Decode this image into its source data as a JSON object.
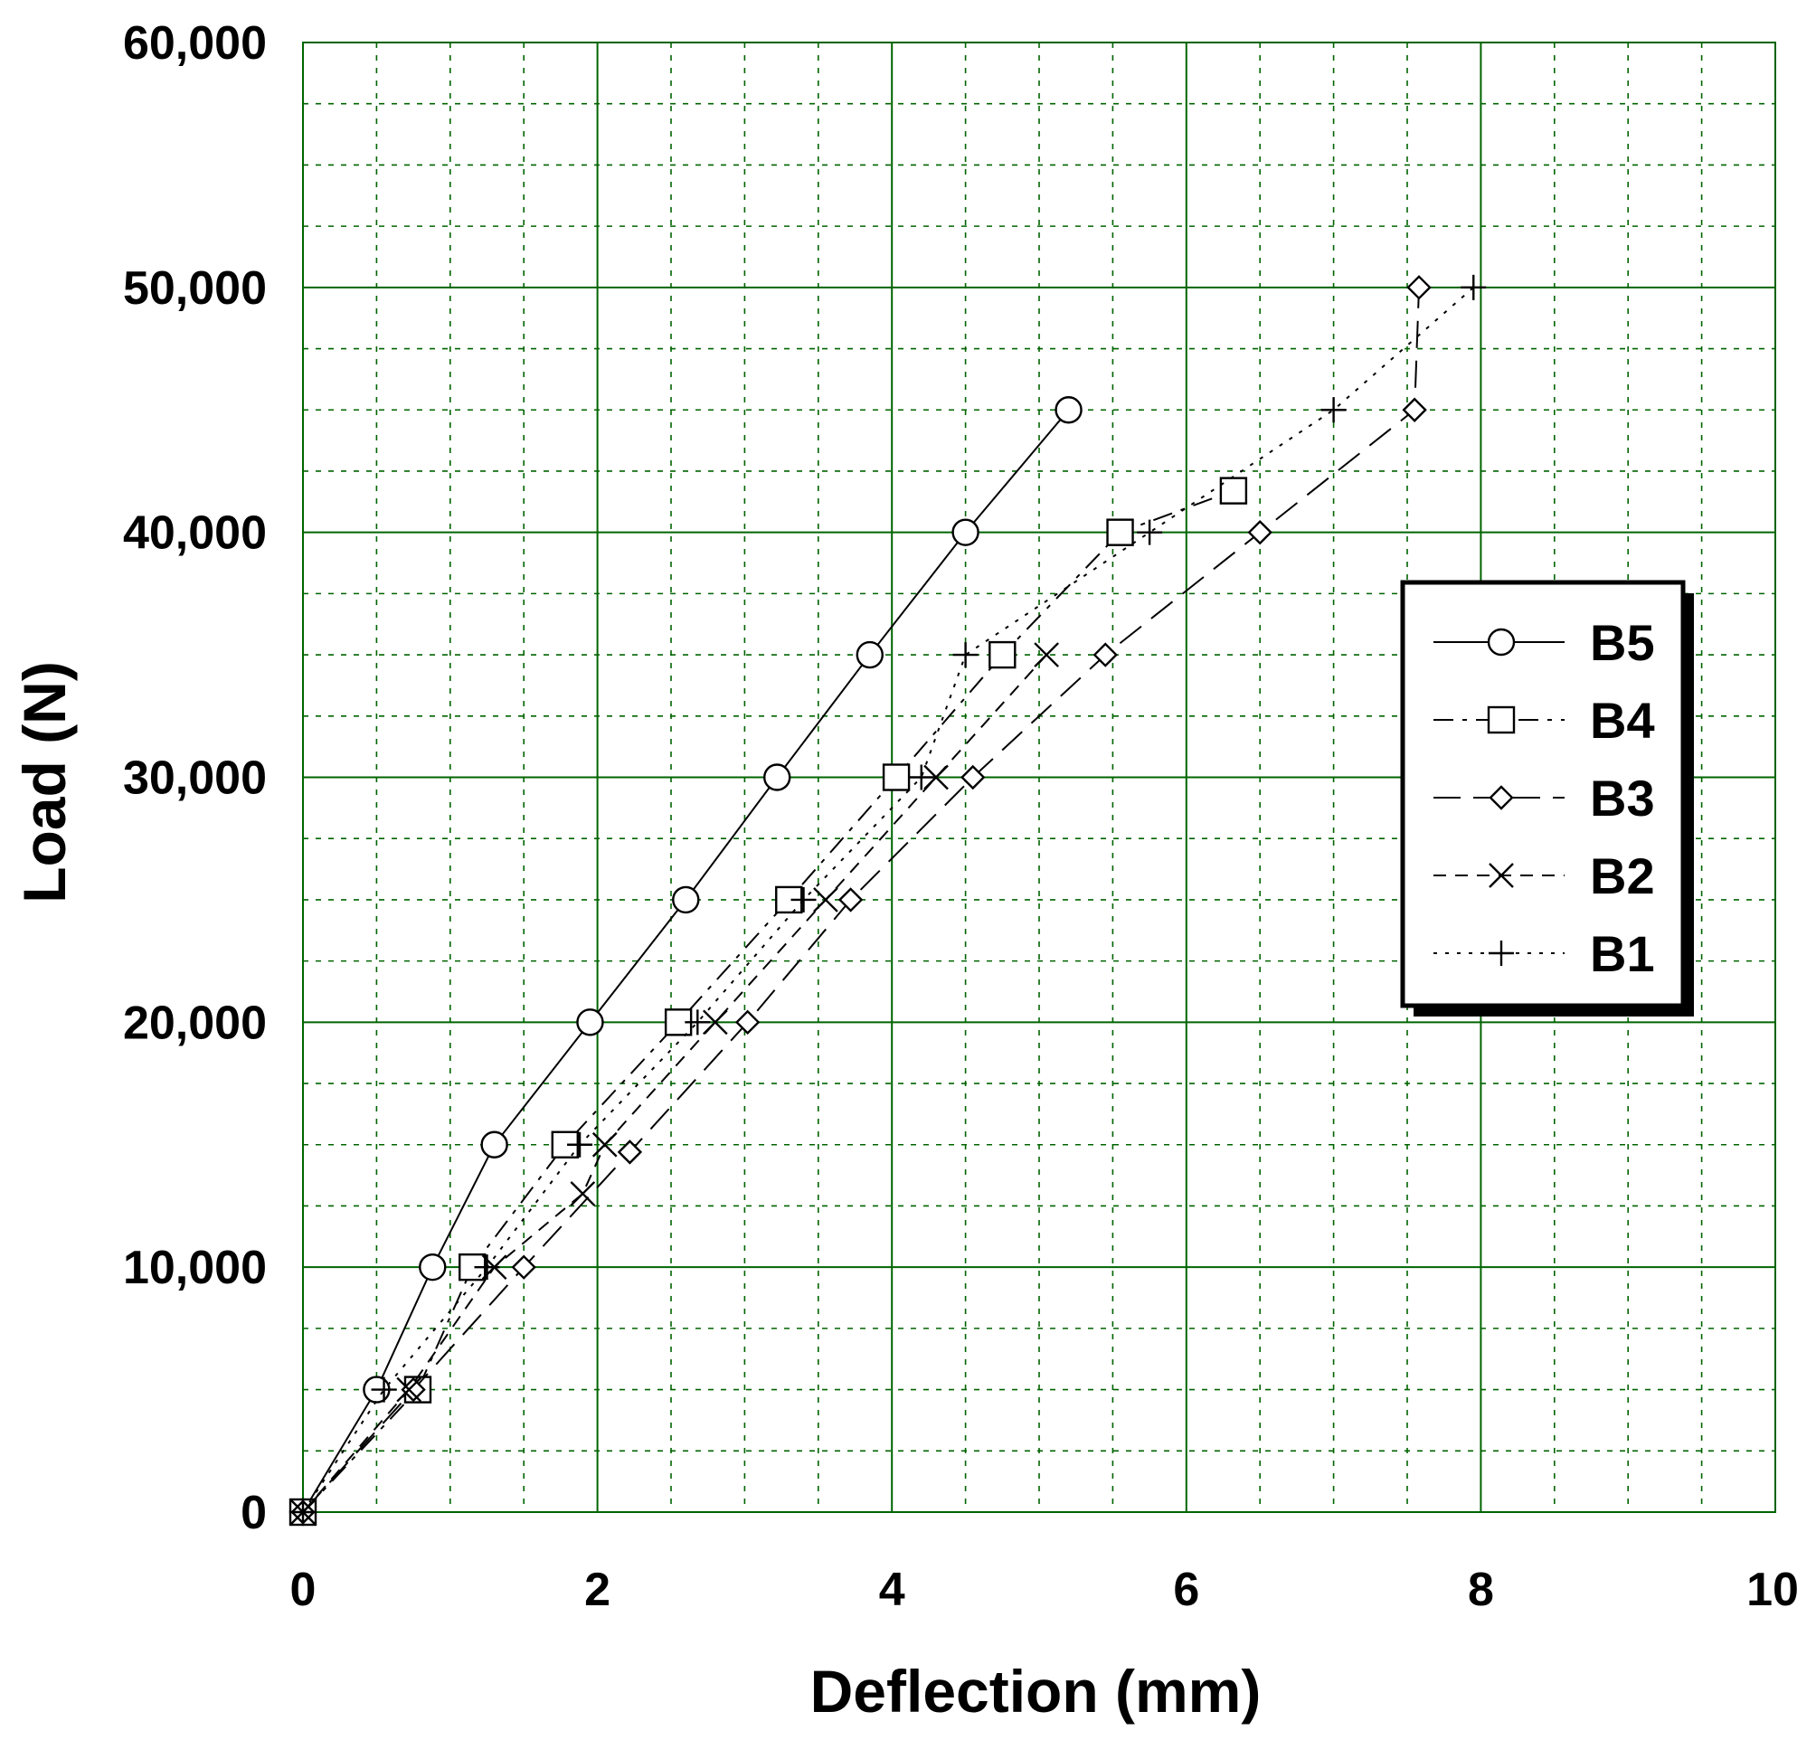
{
  "chart_data": {
    "type": "line",
    "title": "",
    "xlabel": "Deflection (mm)",
    "ylabel": "Load (N)",
    "xlim": [
      0,
      10
    ],
    "ylim": [
      0,
      60000
    ],
    "x_ticks": [
      "0",
      "2",
      "4",
      "6",
      "8",
      "10"
    ],
    "y_ticks": [
      "0",
      "10,000",
      "20,000",
      "30,000",
      "40,000",
      "50,000",
      "60,000"
    ],
    "grid": true,
    "grid_color": "#006400",
    "legend_position": "right",
    "series": [
      {
        "name": "B5",
        "marker": "circle",
        "line_style": "solid",
        "points": [
          [
            0,
            0
          ],
          [
            0.5,
            5000
          ],
          [
            0.88,
            10000
          ],
          [
            1.3,
            15000
          ],
          [
            1.95,
            20000
          ],
          [
            2.6,
            25000
          ],
          [
            3.22,
            30000
          ],
          [
            3.85,
            35000
          ],
          [
            4.5,
            40000
          ],
          [
            5.2,
            45000
          ]
        ]
      },
      {
        "name": "B4",
        "marker": "square",
        "line_style": "dashdot",
        "points": [
          [
            0,
            0
          ],
          [
            0.78,
            5000
          ],
          [
            1.15,
            10000
          ],
          [
            1.78,
            15000
          ],
          [
            2.55,
            20000
          ],
          [
            3.3,
            25000
          ],
          [
            4.03,
            30000
          ],
          [
            4.75,
            35000
          ],
          [
            5.55,
            40000
          ],
          [
            6.32,
            41700
          ]
        ]
      },
      {
        "name": "B3",
        "marker": "diamond",
        "line_style": "longdash",
        "points": [
          [
            0,
            0
          ],
          [
            0.75,
            5000
          ],
          [
            1.5,
            10000
          ],
          [
            2.22,
            14700
          ],
          [
            3.02,
            20000
          ],
          [
            3.72,
            25000
          ],
          [
            4.55,
            30000
          ],
          [
            5.45,
            35000
          ],
          [
            6.5,
            40000
          ],
          [
            7.55,
            45000
          ],
          [
            7.58,
            50000
          ]
        ]
      },
      {
        "name": "B2",
        "marker": "x",
        "line_style": "dashed",
        "points": [
          [
            0,
            0
          ],
          [
            0.72,
            5000
          ],
          [
            1.3,
            10000
          ],
          [
            1.9,
            13000
          ],
          [
            2.05,
            15000
          ],
          [
            2.8,
            20000
          ],
          [
            3.55,
            25000
          ],
          [
            4.3,
            30000
          ],
          [
            5.05,
            35000
          ]
        ]
      },
      {
        "name": "B1",
        "marker": "plus",
        "line_style": "dotted",
        "points": [
          [
            0,
            0
          ],
          [
            0.55,
            5000
          ],
          [
            1.25,
            10000
          ],
          [
            1.88,
            15000
          ],
          [
            2.68,
            20000
          ],
          [
            3.4,
            25000
          ],
          [
            4.2,
            30000
          ],
          [
            4.5,
            35000
          ],
          [
            5.75,
            40000
          ],
          [
            7.0,
            45000
          ],
          [
            7.95,
            50000
          ]
        ]
      }
    ]
  }
}
